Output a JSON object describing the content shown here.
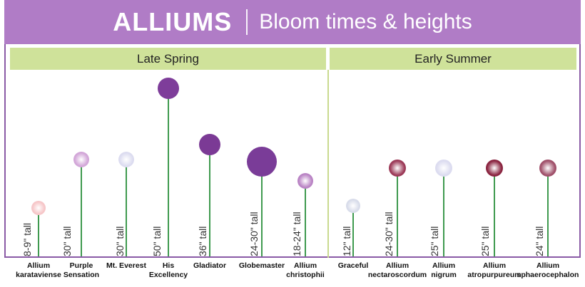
{
  "header": {
    "title": "ALLIUMS",
    "subtitle": "Bloom times & heights"
  },
  "seasons": {
    "late_spring": "Late Spring",
    "early_summer": "Early Summer"
  },
  "plants": [
    {
      "id": "karataviense",
      "height": "8-9\" tall",
      "name": [
        "Allium",
        "karataviense"
      ],
      "color": "#f6c6c8"
    },
    {
      "id": "purple-sensation",
      "height": "30\" tall",
      "name": [
        "Purple",
        "Sensation"
      ],
      "color": "#d2a6d8"
    },
    {
      "id": "mt-everest",
      "height": "30\" tall",
      "name": [
        "Mt. Everest"
      ],
      "color": "#dcdcf0"
    },
    {
      "id": "his-excellency",
      "height": "50\" tall",
      "name": [
        "His",
        "Excellency"
      ],
      "color": "#7e3d9a"
    },
    {
      "id": "gladiator",
      "height": "36\" tall",
      "name": [
        "Gladiator"
      ],
      "color": "#7b3a95"
    },
    {
      "id": "globemaster",
      "height": "24-30\" tall",
      "name": [
        "Globemaster"
      ],
      "color": "#7a3c98"
    },
    {
      "id": "christophii",
      "height": "18-24\" tall",
      "name": [
        "Allium",
        "christophii"
      ],
      "color": "#b983c4"
    },
    {
      "id": "graceful",
      "height": "12\" tall",
      "name": [
        "Graceful"
      ],
      "color": "#d8dcea"
    },
    {
      "id": "nectaroscordum",
      "height": "24-30\" tall",
      "name": [
        "Allium",
        "nectaroscordum"
      ],
      "color": "#9c3a58"
    },
    {
      "id": "nigrum",
      "height": "25\" tall",
      "name": [
        "Allium",
        "nigrum"
      ],
      "color": "#dcdcf0"
    },
    {
      "id": "atropurpureum",
      "height": "25\" tall",
      "name": [
        "Allium",
        "atropurpureum"
      ],
      "color": "#8a2440"
    },
    {
      "id": "sphaerocephalon",
      "height": "24\" tall",
      "name": [
        "Allium",
        "sphaerocephalon"
      ],
      "color": "#a0506a"
    }
  ]
}
